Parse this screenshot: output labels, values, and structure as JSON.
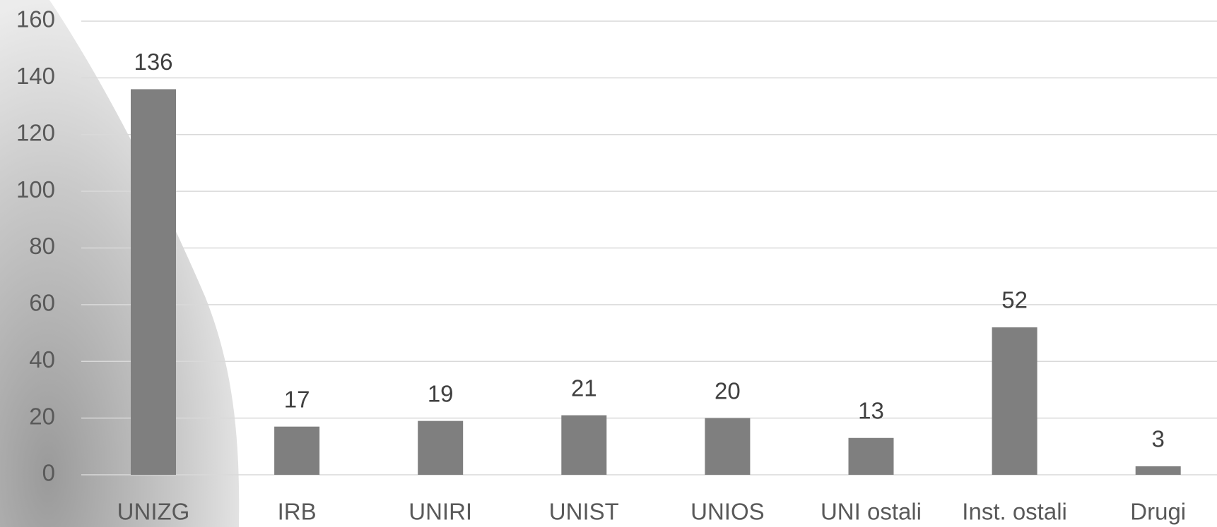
{
  "chart_data": {
    "type": "bar",
    "categories": [
      "UNIZG",
      "IRB",
      "UNIRI",
      "UNIST",
      "UNIOS",
      "UNI ostali",
      "Inst. ostali",
      "Drugi"
    ],
    "values": [
      136,
      17,
      19,
      21,
      20,
      13,
      52,
      3
    ],
    "color": "#7f7f7f",
    "ylim": [
      0,
      160
    ],
    "yticks": [
      0,
      20,
      40,
      60,
      80,
      100,
      120,
      140,
      160
    ],
    "grid": true
  }
}
